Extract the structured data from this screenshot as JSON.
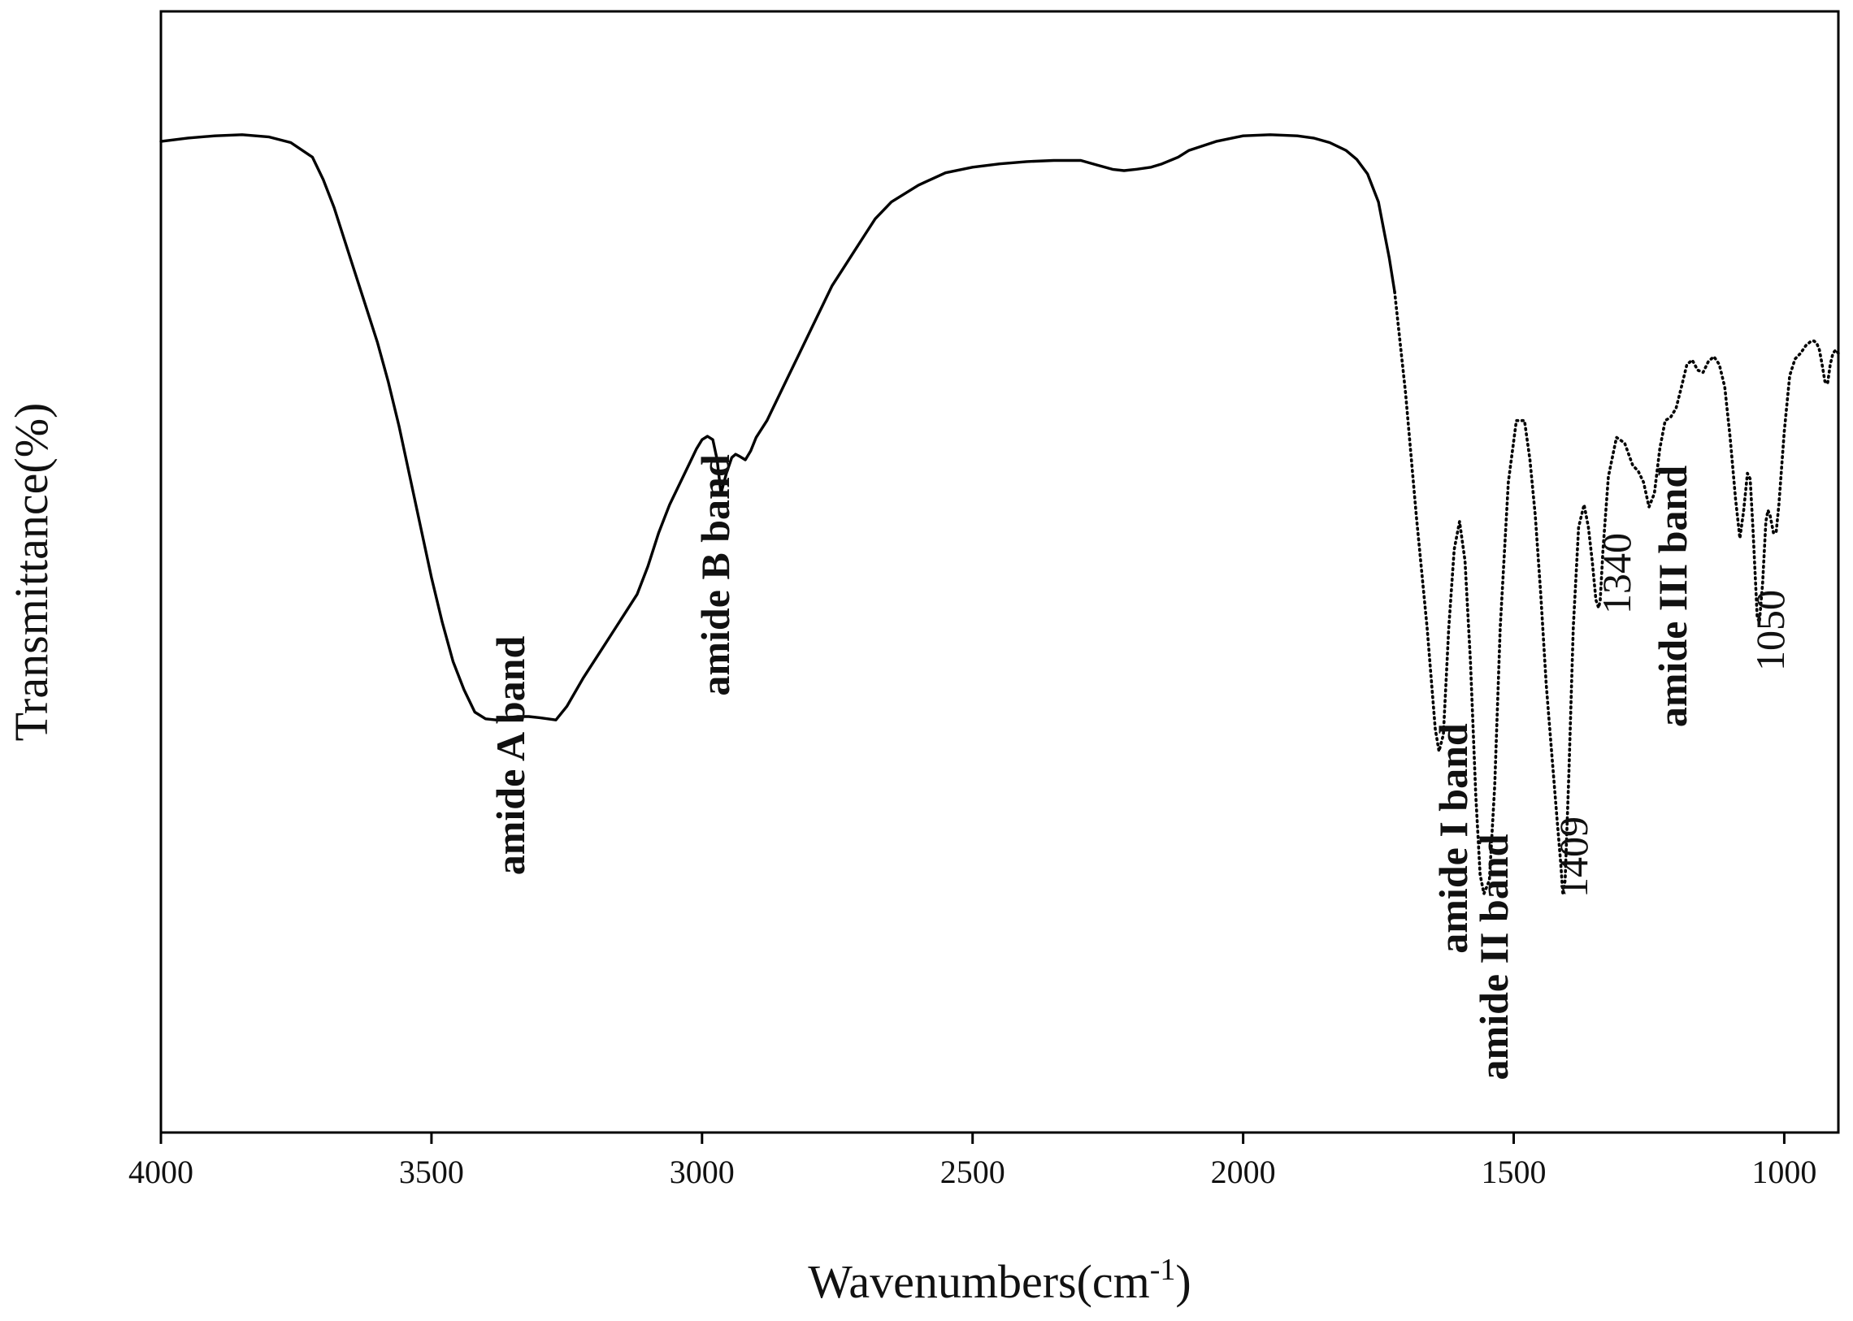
{
  "chart_data": {
    "type": "line",
    "title": "",
    "xlabel": "Wavenumbers(cm",
    "xlabel_superscript": "-1",
    "xlabel_suffix": ")",
    "ylabel": "Transmittance(%)",
    "xlim": [
      4000,
      900
    ],
    "x_reversed": true,
    "ylim": [
      0,
      100
    ],
    "y_ticks_shown": false,
    "grid": false,
    "legend": "none",
    "x_ticks": [
      {
        "value": 4000,
        "label": "4000"
      },
      {
        "value": 3500,
        "label": "3500"
      },
      {
        "value": 3000,
        "label": "3000"
      },
      {
        "value": 2500,
        "label": "2500"
      },
      {
        "value": 2000,
        "label": "2000"
      },
      {
        "value": 1500,
        "label": "1500"
      },
      {
        "value": 1000,
        "label": "1000"
      }
    ],
    "series": [
      {
        "x": [
          4000,
          3950,
          3900,
          3850,
          3800,
          3760,
          3720,
          3700,
          3680,
          3650,
          3620,
          3600,
          3580,
          3560,
          3540,
          3520,
          3500,
          3480,
          3460,
          3440,
          3420,
          3400,
          3380,
          3360,
          3340,
          3320,
          3300,
          3285,
          3270,
          3250,
          3220,
          3200,
          3180,
          3160,
          3140,
          3120,
          3100,
          3080,
          3060,
          3040,
          3020,
          3010,
          3000,
          2990,
          2980,
          2972,
          2965,
          2955,
          2945,
          2938,
          2930,
          2920,
          2910,
          2900,
          2880,
          2860,
          2840,
          2820,
          2800,
          2780,
          2760,
          2740,
          2720,
          2700,
          2680,
          2650,
          2600,
          2550,
          2500,
          2450,
          2400,
          2350,
          2300,
          2270,
          2240,
          2220,
          2200,
          2170,
          2150,
          2120,
          2100,
          2050,
          2000,
          1950,
          1900,
          1870,
          1840,
          1810,
          1790,
          1770,
          1750,
          1740,
          1730,
          1720
        ],
        "y": [
          88.4,
          88.7,
          88.9,
          89.0,
          88.8,
          88.3,
          87.0,
          85.0,
          82.5,
          78.0,
          73.5,
          70.5,
          67.0,
          63.0,
          58.5,
          54.0,
          49.5,
          45.5,
          42.0,
          39.5,
          37.5,
          36.9,
          36.8,
          37.0,
          37.1,
          37.1,
          37.0,
          36.9,
          36.8,
          38.0,
          40.5,
          42.0,
          43.5,
          45.0,
          46.5,
          48.0,
          50.5,
          53.5,
          56.0,
          58.0,
          60.0,
          61.0,
          61.8,
          62.1,
          61.8,
          60.0,
          57.0,
          58.8,
          60.2,
          60.5,
          60.3,
          60.0,
          60.8,
          62.0,
          63.5,
          65.5,
          67.5,
          69.5,
          71.5,
          73.5,
          75.5,
          77.0,
          78.5,
          80.0,
          81.5,
          83.0,
          84.5,
          85.6,
          86.1,
          86.4,
          86.6,
          86.7,
          86.7,
          86.3,
          85.9,
          85.8,
          85.9,
          86.1,
          86.4,
          87.0,
          87.6,
          88.4,
          88.9,
          89.0,
          88.9,
          88.7,
          88.3,
          87.6,
          86.8,
          85.5,
          83.0,
          80.5,
          78.0,
          75.0
        ]
      },
      {
        "x": [
          1720,
          1700,
          1680,
          1660,
          1645,
          1638,
          1630,
          1620,
          1610,
          1600,
          1590,
          1580,
          1570,
          1562,
          1555,
          1545,
          1535,
          1525,
          1510,
          1495,
          1480,
          1470,
          1460,
          1450,
          1440,
          1430,
          1420,
          1413,
          1409,
          1405,
          1398,
          1390,
          1380,
          1370,
          1362,
          1355,
          1348,
          1343,
          1340,
          1335,
          1325,
          1310,
          1295,
          1280,
          1270,
          1260,
          1250,
          1240,
          1230,
          1220,
          1210,
          1200,
          1190,
          1180,
          1170,
          1160,
          1150,
          1140,
          1130,
          1120,
          1110,
          1100,
          1090,
          1082,
          1075,
          1068,
          1063,
          1058,
          1052,
          1050,
          1046,
          1040,
          1034,
          1030,
          1026,
          1020,
          1015,
          1010,
          1000,
          990,
          980,
          970,
          960,
          950,
          945,
          940,
          935,
          930,
          925,
          920,
          915,
          910,
          905,
          900
        ],
        "y": [
          75.0,
          66.0,
          55.0,
          45.0,
          36.0,
          34.0,
          35.5,
          45.0,
          52.0,
          54.5,
          51.0,
          42.0,
          30.0,
          23.0,
          21.3,
          22.5,
          31.0,
          45.0,
          58.0,
          63.5,
          63.5,
          60.0,
          55.0,
          48.0,
          40.0,
          34.0,
          28.0,
          24.0,
          21.2,
          22.5,
          32.0,
          45.0,
          54.0,
          56.0,
          54.0,
          51.0,
          47.5,
          46.8,
          47.5,
          52.0,
          58.5,
          62.0,
          61.5,
          59.5,
          59.0,
          58.0,
          55.8,
          57.0,
          61.0,
          63.5,
          63.8,
          64.6,
          66.5,
          68.5,
          68.9,
          68.0,
          67.8,
          68.8,
          69.2,
          68.5,
          66.5,
          62.0,
          56.5,
          53.0,
          55.5,
          58.8,
          58.3,
          54.0,
          48.0,
          46.0,
          45.5,
          49.0,
          54.5,
          55.5,
          55.0,
          53.5,
          53.5,
          56.0,
          62.5,
          67.5,
          69.0,
          69.5,
          70.2,
          70.6,
          70.6,
          70.4,
          69.8,
          68.5,
          67.0,
          66.8,
          68.5,
          69.5,
          69.8,
          69.5
        ],
        "style": "dotted-dense"
      }
    ],
    "annotations": [
      {
        "text": "amide A band",
        "x": 3350,
        "style": "bold"
      },
      {
        "text": "amide B band",
        "x": 2972,
        "style": "bold"
      },
      {
        "text": "amide I band",
        "x": 1645,
        "style": "bold"
      },
      {
        "text": "amide II band",
        "x": 1555,
        "style": "bold"
      },
      {
        "text": "1409",
        "x": 1409,
        "style": "normal"
      },
      {
        "text": "1340",
        "x": 1340,
        "style": "normal"
      },
      {
        "text": "amide III band",
        "x": 1240,
        "style": "bold"
      },
      {
        "text": "1050",
        "x": 1050,
        "style": "normal"
      }
    ]
  }
}
